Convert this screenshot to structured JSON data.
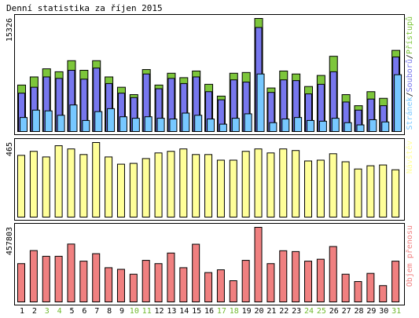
{
  "colors": {
    "background": "#ffffff",
    "frame": "#000000",
    "hits": "#7dc63b",
    "files": "#7777ee",
    "pages": "#77c8ff",
    "visits": "#ffff99",
    "volume": "#f08080",
    "weekend_day": "#6fb82e",
    "weekday": "#000000"
  },
  "chart_data": {
    "type": "bar",
    "title": "Denní statistika za říjen 2015",
    "days": [
      "1",
      "2",
      "3",
      "4",
      "5",
      "6",
      "7",
      "8",
      "9",
      "10",
      "11",
      "12",
      "13",
      "14",
      "15",
      "16",
      "17",
      "18",
      "19",
      "20",
      "21",
      "22",
      "23",
      "24",
      "25",
      "26",
      "27",
      "28",
      "29",
      "30",
      "31"
    ],
    "weekend_days": [
      "3",
      "4",
      "10",
      "11",
      "17",
      "18",
      "24",
      "25",
      "31"
    ],
    "panels": [
      {
        "id": "top",
        "ymax_label": "15326",
        "ymax": 15326,
        "legend": [
          "Stránek",
          "Souborů",
          "Přístupů"
        ],
        "legend_sep": "/",
        "series": [
          {
            "name": "Přístupů",
            "color_key": "hits",
            "values": [
              6300,
              7400,
              8500,
              8100,
              9600,
              8300,
              9600,
              7400,
              6000,
              5000,
              8400,
              6300,
              7900,
              7300,
              8200,
              6400,
              4800,
              7900,
              8000,
              15326,
              5900,
              8200,
              7800,
              6100,
              7600,
              10200,
              5000,
              3500,
              5400,
              4500,
              11000
            ]
          },
          {
            "name": "Souborů",
            "color_key": "files",
            "values": [
              5200,
              6000,
              7400,
              7200,
              8300,
              7100,
              8600,
              6500,
              5200,
              4600,
              7800,
              5800,
              7200,
              6500,
              7400,
              5400,
              4300,
              7000,
              6700,
              14100,
              5300,
              7000,
              6900,
              5100,
              6400,
              8100,
              4000,
              2900,
              4400,
              3500,
              10100
            ]
          },
          {
            "name": "Stránek",
            "color_key": "pages",
            "values": [
              1900,
              2900,
              2800,
              2200,
              3600,
              1500,
              2700,
              3100,
              2000,
              1800,
              2000,
              1800,
              1700,
              2500,
              2200,
              1700,
              1000,
              1800,
              2400,
              7800,
              1200,
              1700,
              1900,
              1500,
              1400,
              1800,
              1200,
              900,
              1600,
              1300,
              7700
            ]
          }
        ]
      },
      {
        "id": "middle",
        "ymax_label": "465",
        "ymax": 465,
        "legend": [
          "Návštěv"
        ],
        "legend_sep": "",
        "series": [
          {
            "name": "Návštěv",
            "color_key": "visits",
            "values": [
              385,
              410,
              375,
              445,
              425,
              390,
              465,
              375,
              330,
              335,
              365,
              400,
              410,
              425,
              390,
              390,
              355,
              355,
              410,
              425,
              400,
              425,
              415,
              350,
              355,
              395,
              345,
              300,
              320,
              325,
              295
            ]
          }
        ]
      },
      {
        "id": "bottom",
        "ymax_label": "457803",
        "ymax": 457803,
        "legend": [
          "Objem přenosu"
        ],
        "legend_sep": "",
        "series": [
          {
            "name": "Objem přenosu",
            "color_key": "volume",
            "values": [
              235000,
              315000,
              280000,
              280000,
              355000,
              250000,
              296000,
              210000,
              200000,
              170000,
              255000,
              235000,
              300000,
              210000,
              354000,
              180000,
              197000,
              130000,
              255000,
              457803,
              235000,
              314000,
              309000,
              250000,
              262000,
              340000,
              170000,
              125000,
              175000,
              100000,
              250000
            ]
          }
        ]
      }
    ]
  }
}
